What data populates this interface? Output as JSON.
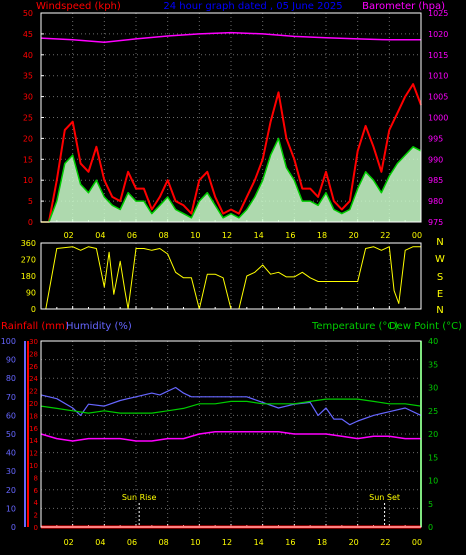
{
  "header": {
    "left": "Windspeed (kph)",
    "center": "24 hour graph dated , 05 June 2025",
    "right": "Barometer (hpa)"
  },
  "colors": {
    "background": "#000000",
    "frame": "#ffffff",
    "wind_gust": "#ff0000",
    "wind_avg": "#00cc00",
    "wind_fill": "#ccffcc",
    "barometer": "#ff00ff",
    "direction": "#ffff00",
    "rain": "#ff0000",
    "humidity": "#6666ff",
    "temperature": "#00cc00",
    "dewpoint": "#ff00ff",
    "title": "#0000ff",
    "grid": "#6b6b6b"
  },
  "chart_data": [
    {
      "id": "wind",
      "type": "line",
      "x_ticks": [
        "02",
        "04",
        "06",
        "08",
        "10",
        "12",
        "14",
        "16",
        "18",
        "20",
        "22",
        "00"
      ],
      "left_axis": {
        "label": "Windspeed (kph)",
        "range": [
          0,
          50
        ],
        "ticks": [
          0,
          5,
          10,
          15,
          20,
          25,
          30,
          35,
          40,
          45,
          50
        ]
      },
      "right_axis": {
        "label": "Barometer (hpa)",
        "range": [
          975,
          1025
        ],
        "ticks": [
          975,
          980,
          985,
          990,
          995,
          1000,
          1005,
          1010,
          1015,
          1020,
          1025
        ]
      },
      "series": [
        {
          "key": "gust",
          "hours": [
            0,
            0.5,
            1,
            1.5,
            2,
            2.5,
            3,
            3.5,
            4,
            4.5,
            5,
            5.5,
            6,
            6.5,
            7,
            7.5,
            8,
            8.5,
            9,
            9.5,
            10,
            10.5,
            11,
            11.5,
            12,
            12.5,
            13,
            13.5,
            14,
            14.5,
            15,
            15.5,
            16,
            16.5,
            17,
            17.5,
            18,
            18.5,
            19,
            19.5,
            20,
            20.5,
            21,
            21.5,
            22,
            22.5,
            23,
            23.5,
            24
          ],
          "values": [
            0,
            0,
            10,
            22,
            24,
            14,
            12,
            18,
            10,
            6,
            5,
            12,
            8,
            8,
            3,
            6,
            10,
            5,
            4,
            2,
            10,
            12,
            6,
            2,
            3,
            2,
            6,
            10,
            15,
            24,
            31,
            20,
            15,
            8,
            8,
            6,
            12,
            5,
            3,
            5,
            17,
            23,
            18,
            12,
            22,
            26,
            30,
            33,
            28
          ]
        },
        {
          "key": "average",
          "hours": [
            0,
            0.5,
            1,
            1.5,
            2,
            2.5,
            3,
            3.5,
            4,
            4.5,
            5,
            5.5,
            6,
            6.5,
            7,
            7.5,
            8,
            8.5,
            9,
            9.5,
            10,
            10.5,
            11,
            11.5,
            12,
            12.5,
            13,
            13.5,
            14,
            14.5,
            15,
            15.5,
            16,
            16.5,
            17,
            17.5,
            18,
            18.5,
            19,
            19.5,
            20,
            20.5,
            21,
            21.5,
            22,
            22.5,
            23,
            23.5,
            24
          ],
          "values": [
            0,
            0,
            5,
            14,
            16,
            9,
            7,
            10,
            6,
            4,
            3,
            7,
            5,
            5,
            2,
            4,
            6,
            3,
            2,
            1,
            5,
            7,
            4,
            1,
            2,
            1,
            3,
            6,
            10,
            16,
            20,
            13,
            10,
            5,
            5,
            4,
            7,
            3,
            2,
            3,
            8,
            12,
            10,
            7,
            11,
            14,
            16,
            18,
            17
          ]
        },
        {
          "key": "barometer",
          "hours": [
            0,
            2,
            4,
            6,
            8,
            10,
            12,
            14,
            16,
            18,
            20,
            22,
            24
          ],
          "values": [
            1019,
            1018.6,
            1018,
            1018.8,
            1019.5,
            1020,
            1020.3,
            1020,
            1019.4,
            1019.1,
            1018.8,
            1018.6,
            1018.6
          ]
        }
      ]
    },
    {
      "id": "direction",
      "type": "line",
      "x_ticks": [
        "02",
        "04",
        "06",
        "08",
        "10",
        "12",
        "14",
        "16",
        "18",
        "20",
        "22",
        "00"
      ],
      "left_ticks": [
        0,
        90,
        180,
        270,
        360
      ],
      "right_labels": [
        "N",
        "W",
        "S",
        "E",
        "N"
      ],
      "range": [
        0,
        360
      ],
      "hours": [
        0.3,
        1,
        2,
        2.5,
        3,
        3.5,
        4,
        4.3,
        4.6,
        5,
        5.3,
        5.5,
        6,
        6.5,
        7,
        7.5,
        8,
        8.5,
        9,
        9.5,
        10,
        10.5,
        11,
        11.5,
        12,
        12.5,
        13,
        13.5,
        14,
        14.5,
        15,
        15.5,
        16,
        16.5,
        17,
        17.5,
        18,
        18.5,
        19,
        19.5,
        20,
        20.5,
        21,
        21.5,
        22,
        22.3,
        22.6,
        23,
        23.5,
        24
      ],
      "values": [
        0,
        330,
        340,
        320,
        340,
        330,
        120,
        310,
        80,
        260,
        100,
        0,
        330,
        330,
        320,
        330,
        300,
        200,
        170,
        170,
        0,
        190,
        190,
        170,
        0,
        0,
        180,
        200,
        240,
        190,
        200,
        175,
        175,
        200,
        170,
        150,
        150,
        150,
        150,
        150,
        150,
        330,
        340,
        320,
        340,
        100,
        30,
        320,
        340,
        340
      ]
    },
    {
      "id": "climate",
      "type": "line",
      "x_ticks": [
        "02",
        "04",
        "06",
        "08",
        "10",
        "12",
        "14",
        "16",
        "18",
        "20",
        "22",
        "00"
      ],
      "left_labels": {
        "rainfall": "Rainfall (mm)",
        "humidity": "Humidity (%)"
      },
      "right_labels": {
        "temperature": "Temperature (°C)",
        "dewpoint": "Dew Point (°C)"
      },
      "humidity_axis": {
        "range": [
          0,
          100
        ],
        "ticks": [
          0,
          10,
          20,
          30,
          40,
          50,
          60,
          70,
          80,
          90,
          100
        ]
      },
      "rain_axis": {
        "range": [
          0,
          30
        ],
        "ticks": [
          0,
          2,
          4,
          6,
          8,
          10,
          12,
          14,
          16,
          18,
          20,
          22,
          24,
          26,
          28,
          30
        ]
      },
      "temp_axis": {
        "range": [
          0,
          40
        ],
        "ticks": [
          0,
          5,
          10,
          15,
          20,
          25,
          30,
          35,
          40
        ]
      },
      "annotations": [
        {
          "label": "Sun Rise",
          "hour": 6.2
        },
        {
          "label": "Sun Set",
          "hour": 21.7
        }
      ],
      "series": [
        {
          "key": "humidity",
          "hours": [
            0,
            1,
            2,
            2.5,
            3,
            4,
            5,
            6,
            7,
            7.5,
            8,
            8.5,
            9,
            9.5,
            10,
            11,
            12,
            13,
            14,
            15,
            16,
            17,
            17.5,
            18,
            18.5,
            19,
            19.5,
            20,
            21,
            22,
            23,
            24
          ],
          "values": [
            71,
            69,
            64,
            60,
            66,
            65,
            68,
            70,
            72,
            71,
            73,
            75,
            72,
            70,
            70,
            70,
            70,
            70,
            67,
            64,
            66,
            67,
            60,
            64,
            58,
            58,
            55,
            57,
            60,
            62,
            64,
            60
          ]
        },
        {
          "key": "rainfall",
          "hours": [
            0,
            24
          ],
          "values": [
            0,
            0
          ]
        },
        {
          "key": "temperature",
          "hours": [
            0,
            1,
            2,
            3,
            4,
            5,
            6,
            7,
            8,
            9,
            10,
            11,
            12,
            13,
            14,
            15,
            16,
            17,
            18,
            19,
            20,
            21,
            22,
            23,
            24
          ],
          "values": [
            26,
            25.5,
            25,
            24.5,
            25,
            24.5,
            24.5,
            24.5,
            25,
            25.5,
            26.5,
            26.5,
            27,
            27,
            26.5,
            26.5,
            26.5,
            27,
            27.5,
            27.5,
            27.5,
            27,
            26.5,
            26.5,
            26
          ]
        },
        {
          "key": "dewpoint",
          "hours": [
            0,
            1,
            2,
            3,
            4,
            5,
            6,
            7,
            8,
            9,
            10,
            11,
            12,
            13,
            14,
            15,
            16,
            17,
            18,
            19,
            20,
            21,
            22,
            23,
            24
          ],
          "values": [
            20,
            19,
            18.5,
            19,
            19,
            19,
            18.5,
            18.5,
            19,
            19,
            20,
            20.5,
            20.5,
            20.5,
            20.5,
            20.5,
            20,
            20,
            20,
            19.5,
            19,
            19.5,
            19.5,
            19,
            19
          ]
        }
      ]
    }
  ]
}
